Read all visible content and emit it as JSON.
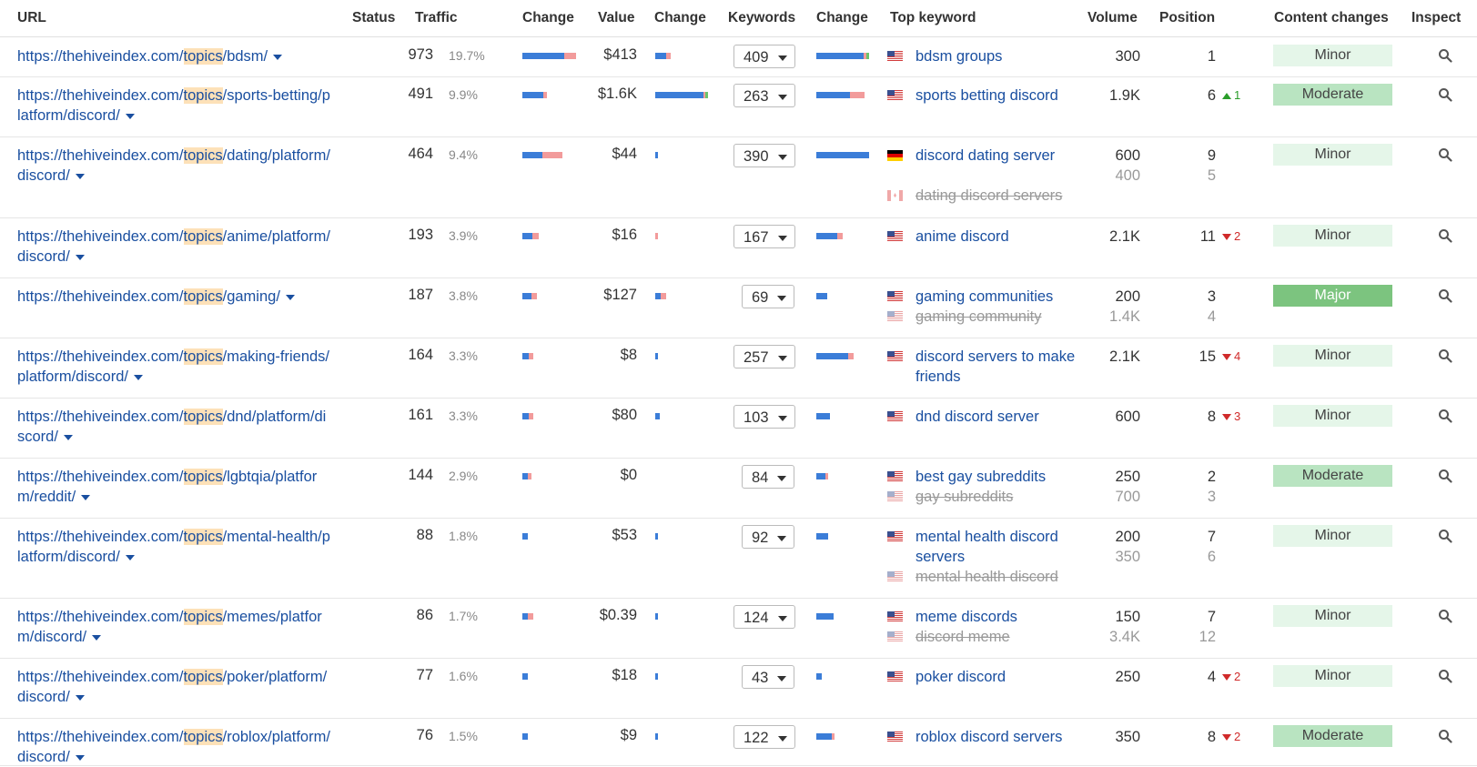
{
  "headers": {
    "url": "URL",
    "status": "Status",
    "traffic": "Traffic",
    "change1": "Change",
    "value": "Value",
    "change2": "Change",
    "keywords": "Keywords",
    "change3": "Change",
    "top_keyword": "Top keyword",
    "volume": "Volume",
    "position": "Position",
    "content_changes": "Content changes",
    "inspect": "Inspect"
  },
  "rows": [
    {
      "url_pre": "https://thehiveindex.com/",
      "url_hl": "topics",
      "url_post": "/bdsm/",
      "traffic": "973",
      "pct": "19.7%",
      "value": "$413",
      "keywords": "409",
      "kw": "bdsm groups",
      "kw2": "",
      "vol": "300",
      "vol2": "",
      "pos": "1",
      "pos2": "",
      "delta": "",
      "delta_dir": "",
      "content": "Minor",
      "flag": "us",
      "flag2": ""
    },
    {
      "url_pre": "https://thehiveindex.com/",
      "url_hl": "topics",
      "url_post": "/sports-betting/platform/discord/",
      "traffic": "491",
      "pct": "9.9%",
      "value": "$1.6K",
      "keywords": "263",
      "kw": "sports betting discord",
      "kw2": "",
      "vol": "1.9K",
      "vol2": "",
      "pos": "6",
      "pos2": "",
      "delta": "1",
      "delta_dir": "up",
      "content": "Moderate",
      "flag": "us",
      "flag2": ""
    },
    {
      "url_pre": "https://thehiveindex.com/",
      "url_hl": "topics",
      "url_post": "/dating/platform/discord/",
      "traffic": "464",
      "pct": "9.4%",
      "value": "$44",
      "keywords": "390",
      "kw": "discord dating server",
      "kw2": "dating discord servers",
      "vol": "600",
      "vol2": "400",
      "pos": "9",
      "pos2": "5",
      "delta": "",
      "delta_dir": "",
      "content": "Minor",
      "flag": "de",
      "flag2": "ca"
    },
    {
      "url_pre": "https://thehiveindex.com/",
      "url_hl": "topics",
      "url_post": "/anime/platform/discord/",
      "traffic": "193",
      "pct": "3.9%",
      "value": "$16",
      "keywords": "167",
      "kw": "anime discord",
      "kw2": "",
      "vol": "2.1K",
      "vol2": "",
      "pos": "11",
      "pos2": "",
      "delta": "2",
      "delta_dir": "down",
      "content": "Minor",
      "flag": "us",
      "flag2": ""
    },
    {
      "url_pre": "https://thehiveindex.com/",
      "url_hl": "topics",
      "url_post": "/gaming/",
      "traffic": "187",
      "pct": "3.8%",
      "value": "$127",
      "keywords": "69",
      "kw": "gaming communities",
      "kw2": "gaming community",
      "vol": "200",
      "vol2": "1.4K",
      "pos": "3",
      "pos2": "4",
      "delta": "",
      "delta_dir": "",
      "content": "Major",
      "flag": "us",
      "flag2": "us"
    },
    {
      "url_pre": "https://thehiveindex.com/",
      "url_hl": "topics",
      "url_post": "/making-friends/platform/discord/",
      "traffic": "164",
      "pct": "3.3%",
      "value": "$8",
      "keywords": "257",
      "kw": "discord servers to make friends",
      "kw2": "",
      "vol": "2.1K",
      "vol2": "",
      "pos": "15",
      "pos2": "",
      "delta": "4",
      "delta_dir": "down",
      "content": "Minor",
      "flag": "us",
      "flag2": ""
    },
    {
      "url_pre": "https://thehiveindex.com/",
      "url_hl": "topics",
      "url_post": "/dnd/platform/discord/",
      "traffic": "161",
      "pct": "3.3%",
      "value": "$80",
      "keywords": "103",
      "kw": "dnd discord server",
      "kw2": "",
      "vol": "600",
      "vol2": "",
      "pos": "8",
      "pos2": "",
      "delta": "3",
      "delta_dir": "down",
      "content": "Minor",
      "flag": "us",
      "flag2": ""
    },
    {
      "url_pre": "https://thehiveindex.com/",
      "url_hl": "topics",
      "url_post": "/lgbtqia/platform/reddit/",
      "traffic": "144",
      "pct": "2.9%",
      "value": "$0",
      "keywords": "84",
      "kw": "best gay subreddits",
      "kw2": "gay subreddits",
      "vol": "250",
      "vol2": "700",
      "pos": "2",
      "pos2": "3",
      "delta": "",
      "delta_dir": "",
      "content": "Moderate",
      "flag": "us",
      "flag2": "us"
    },
    {
      "url_pre": "https://thehiveindex.com/",
      "url_hl": "topics",
      "url_post": "/mental-health/platform/discord/",
      "traffic": "88",
      "pct": "1.8%",
      "value": "$53",
      "keywords": "92",
      "kw": "mental health discord servers",
      "kw2": "mental health discord",
      "vol": "200",
      "vol2": "350",
      "pos": "7",
      "pos2": "6",
      "delta": "",
      "delta_dir": "",
      "content": "Minor",
      "flag": "us",
      "flag2": "us"
    },
    {
      "url_pre": "https://thehiveindex.com/",
      "url_hl": "topics",
      "url_post": "/memes/platform/discord/",
      "traffic": "86",
      "pct": "1.7%",
      "value": "$0.39",
      "keywords": "124",
      "kw": "meme discords",
      "kw2": "discord meme",
      "vol": "150",
      "vol2": "3.4K",
      "pos": "7",
      "pos2": "12",
      "delta": "",
      "delta_dir": "",
      "content": "Minor",
      "flag": "us",
      "flag2": "us"
    },
    {
      "url_pre": "https://thehiveindex.com/",
      "url_hl": "topics",
      "url_post": "/poker/platform/discord/",
      "traffic": "77",
      "pct": "1.6%",
      "value": "$18",
      "keywords": "43",
      "kw": "poker discord",
      "kw2": "",
      "vol": "250",
      "vol2": "",
      "pos": "4",
      "pos2": "",
      "delta": "2",
      "delta_dir": "down",
      "content": "Minor",
      "flag": "us",
      "flag2": ""
    },
    {
      "url_pre": "https://thehiveindex.com/",
      "url_hl": "topics",
      "url_post": "/roblox/platform/discord/",
      "traffic": "76",
      "pct": "1.5%",
      "value": "$9",
      "keywords": "122",
      "kw": "roblox discord servers",
      "kw2": "",
      "vol": "350",
      "vol2": "",
      "pos": "8",
      "pos2": "",
      "delta": "2",
      "delta_dir": "down",
      "content": "Moderate",
      "flag": "us",
      "flag2": ""
    }
  ],
  "trend_bars": [
    {
      "traffic": [
        0.78,
        0.22,
        0
      ],
      "value": [
        0.7,
        0.3,
        0
      ],
      "keywords": [
        0.9,
        0.05,
        0.05
      ],
      "tw": [
        0.99,
        0
      ],
      "vw": [
        0.3
      ],
      "kw": [
        1.0
      ]
    },
    {
      "traffic": [
        0.85,
        0.15,
        0
      ],
      "value": [
        0.92,
        0.03,
        0.05
      ],
      "keywords": [
        0.7,
        0.3,
        0
      ],
      "tw": [
        0.45
      ],
      "vw": [
        1.0
      ],
      "kw": [
        0.92
      ]
    },
    {
      "traffic": [
        0.5,
        0.5,
        0
      ],
      "value": [
        1,
        0,
        0
      ],
      "keywords": [
        1,
        0,
        0
      ],
      "tw": [
        0.73
      ],
      "vw": [
        0.05
      ],
      "kw": [
        1.0
      ]
    },
    {
      "traffic": [
        0.6,
        0.4,
        0
      ],
      "value": [
        0,
        1,
        0
      ],
      "keywords": [
        0.8,
        0.2,
        0
      ],
      "tw": [
        0.3
      ],
      "vw": [
        0.05
      ],
      "kw": [
        0.5
      ]
    },
    {
      "traffic": [
        0.6,
        0.4,
        0
      ],
      "value": [
        0.5,
        0.5,
        0
      ],
      "keywords": [
        1,
        0,
        0
      ],
      "tw": [
        0.27
      ],
      "vw": [
        0.2
      ],
      "kw": [
        0.2
      ]
    },
    {
      "traffic": [
        0.6,
        0.4,
        0
      ],
      "value": [
        1,
        0,
        0
      ],
      "keywords": [
        0.85,
        0.15,
        0
      ],
      "tw": [
        0.2
      ],
      "vw": [
        0.05
      ],
      "kw": [
        0.7
      ]
    },
    {
      "traffic": [
        0.6,
        0.4,
        0
      ],
      "value": [
        1,
        0,
        0
      ],
      "keywords": [
        1,
        0,
        0
      ],
      "tw": [
        0.2
      ],
      "vw": [
        0.08
      ],
      "kw": [
        0.25
      ]
    },
    {
      "traffic": [
        0.6,
        0.4,
        0
      ],
      "value": [
        0,
        0,
        0
      ],
      "keywords": [
        0.8,
        0.2,
        0
      ],
      "tw": [
        0.17
      ],
      "vw": [
        0
      ],
      "kw": [
        0.22
      ]
    },
    {
      "traffic": [
        1,
        0,
        0
      ],
      "value": [
        1,
        0,
        0
      ],
      "keywords": [
        1,
        0,
        0
      ],
      "tw": [
        0.1
      ],
      "vw": [
        0.05
      ],
      "kw": [
        0.22
      ]
    },
    {
      "traffic": [
        0.5,
        0.5,
        0
      ],
      "value": [
        1,
        0,
        0
      ],
      "keywords": [
        1,
        0,
        0
      ],
      "tw": [
        0.2
      ],
      "vw": [
        0.05
      ],
      "kw": [
        0.32
      ]
    },
    {
      "traffic": [
        1,
        0,
        0
      ],
      "value": [
        1,
        0,
        0
      ],
      "keywords": [
        1,
        0,
        0
      ],
      "tw": [
        0.1
      ],
      "vw": [
        0.05
      ],
      "kw": [
        0.1
      ]
    },
    {
      "traffic": [
        1,
        0,
        0
      ],
      "value": [
        1,
        0,
        0
      ],
      "keywords": [
        0.85,
        0.15,
        0
      ],
      "tw": [
        0.1
      ],
      "vw": [
        0.05
      ],
      "kw": [
        0.35
      ]
    }
  ],
  "colors": {
    "link": "#1a4fa0",
    "bar_blue": "#3b7dd8",
    "bar_pink": "#f29b9b",
    "bar_green": "#6cc46c",
    "minor": "#e5f6e9",
    "moderate": "#b9e4c1",
    "major": "#7cc47f"
  }
}
